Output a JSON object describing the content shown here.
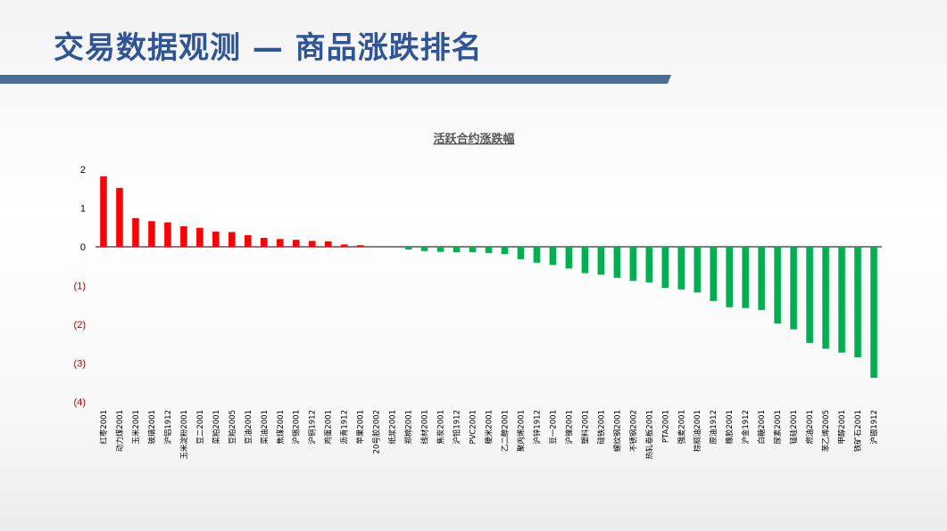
{
  "slide": {
    "title": "交易数据观测 — 商品涨跌排名"
  },
  "colors": {
    "title": "#2f5597",
    "title_bar": "#4a6d96",
    "positive": "#ff0000",
    "negative": "#00b050",
    "negative_tick": "#c00000"
  },
  "chart_data": {
    "type": "bar",
    "title": "活跃合约涨跌幅",
    "xlabel": "",
    "ylabel": "",
    "ylim": [
      -4,
      2
    ],
    "yticks": [
      2,
      1,
      0,
      -1,
      -2,
      -3,
      -4
    ],
    "ytick_labels": [
      "2",
      "1",
      "0",
      "(1)",
      "(2)",
      "(3)",
      "(4)"
    ],
    "grid": false,
    "legend": "none",
    "categories": [
      "红枣2001",
      "动力煤2001",
      "玉米2001",
      "玻璃2001",
      "沪铝1912",
      "玉米淀粉2001",
      "豆二2001",
      "菜粕2001",
      "豆粕2005",
      "豆油2001",
      "菜油2001",
      "焦煤2001",
      "沪锡2001",
      "沪铜1912",
      "鸡蛋2001",
      "沥青1912",
      "苹果2001",
      "20号胶2002",
      "纸浆2001",
      "郑棉2001",
      "线材2001",
      "焦炭2001",
      "沪铅1912",
      "PVC2001",
      "粳米2001",
      "乙二醇2001",
      "聚丙烯2001",
      "沪锌1912",
      "豆一2001",
      "沪镍2001",
      "塑料2001",
      "硅铁2001",
      "螺纹钢2001",
      "不锈钢2002",
      "热轧卷板2001",
      "PTA2001",
      "强麦2001",
      "棕榈油2001",
      "原油1912",
      "橡胶2001",
      "沪金1912",
      "白糖2001",
      "尿素2001",
      "锰硅2001",
      "燃油2001",
      "苯乙烯2005",
      "甲醇2001",
      "铁矿石2001",
      "沪银1912"
    ],
    "values": [
      1.82,
      1.52,
      0.74,
      0.66,
      0.63,
      0.53,
      0.49,
      0.39,
      0.38,
      0.3,
      0.23,
      0.2,
      0.18,
      0.15,
      0.14,
      0.06,
      0.04,
      0.0,
      0.0,
      -0.07,
      -0.11,
      -0.13,
      -0.14,
      -0.14,
      -0.16,
      -0.19,
      -0.32,
      -0.41,
      -0.47,
      -0.56,
      -0.68,
      -0.72,
      -0.8,
      -0.88,
      -0.92,
      -1.06,
      -1.1,
      -1.18,
      -1.4,
      -1.56,
      -1.58,
      -1.63,
      -1.98,
      -2.13,
      -2.48,
      -2.63,
      -2.73,
      -2.85,
      -3.38
    ]
  }
}
